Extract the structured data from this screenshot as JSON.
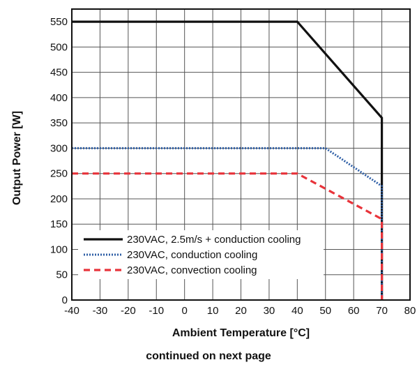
{
  "chart_data": {
    "type": "line",
    "title": "",
    "xlabel": "Ambient Temperature [°C]",
    "ylabel": "Output Power [W]",
    "xlim": [
      -40,
      80
    ],
    "ylim": [
      0,
      575
    ],
    "xticks": [
      -40,
      -30,
      -20,
      -10,
      0,
      10,
      20,
      30,
      40,
      50,
      60,
      70,
      80
    ],
    "yticks": [
      0,
      50,
      100,
      150,
      200,
      250,
      300,
      350,
      400,
      450,
      500,
      550
    ],
    "grid": true,
    "legend_position": "bottom-left",
    "series": [
      {
        "name": "230VAC, 2.5m/s + conduction cooling",
        "color": "#111111",
        "style": "solid",
        "points": [
          [
            -40,
            550
          ],
          [
            40,
            550
          ],
          [
            70,
            360
          ],
          [
            70,
            0
          ]
        ]
      },
      {
        "name": "230VAC, conduction cooling",
        "color": "#2f5fa6",
        "style": "dotted",
        "points": [
          [
            -40,
            300
          ],
          [
            50,
            300
          ],
          [
            70,
            225
          ],
          [
            70,
            0
          ]
        ]
      },
      {
        "name": "230VAC, convection cooling",
        "color": "#e8333a",
        "style": "dashed",
        "points": [
          [
            -40,
            250
          ],
          [
            40,
            250
          ],
          [
            70,
            160
          ],
          [
            70,
            0
          ]
        ]
      }
    ]
  },
  "footer": {
    "note": "continued on next page"
  }
}
